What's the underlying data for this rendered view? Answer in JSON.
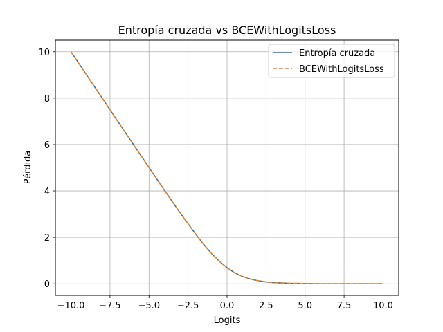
{
  "chart_data": {
    "type": "line",
    "title": "Entropía cruzada vs BCEWithLogitsLoss",
    "xlabel": "Logits",
    "ylabel": "Pérdida",
    "xlim": [
      -11,
      11
    ],
    "ylim": [
      -0.5,
      10.5
    ],
    "xticks": [
      -10.0,
      -7.5,
      -5.0,
      -2.5,
      0.0,
      2.5,
      5.0,
      7.5,
      10.0
    ],
    "xtick_labels": [
      "−10.0",
      "−7.5",
      "−5.0",
      "−2.5",
      "0.0",
      "2.5",
      "5.0",
      "7.5",
      "10.0"
    ],
    "yticks": [
      0,
      2,
      4,
      6,
      8,
      10
    ],
    "ytick_labels": [
      "0",
      "2",
      "4",
      "6",
      "8",
      "10"
    ],
    "grid": true,
    "legend_position": "top-right",
    "x": [
      -10,
      -9,
      -8,
      -7,
      -6,
      -5,
      -4,
      -3,
      -2,
      -1.5,
      -1,
      -0.5,
      0,
      0.5,
      1,
      1.5,
      2,
      2.5,
      3,
      4,
      5,
      6,
      7,
      8,
      9,
      10
    ],
    "series": [
      {
        "name": "Entropía cruzada",
        "color": "#1f77b4",
        "style": "solid",
        "values": [
          10.0,
          9.0,
          8.0,
          7.0,
          6.0,
          5.01,
          4.02,
          3.05,
          2.13,
          1.7,
          1.31,
          0.97,
          0.69,
          0.47,
          0.31,
          0.2,
          0.13,
          0.08,
          0.05,
          0.02,
          0.01,
          0.0,
          0.0,
          0.0,
          0.0,
          0.0
        ]
      },
      {
        "name": "BCEWithLogitsLoss",
        "color": "#ff7f0e",
        "style": "dashed",
        "values": [
          10.0,
          9.0,
          8.0,
          7.0,
          6.0,
          5.01,
          4.02,
          3.05,
          2.13,
          1.7,
          1.31,
          0.97,
          0.69,
          0.47,
          0.31,
          0.2,
          0.13,
          0.08,
          0.05,
          0.02,
          0.01,
          0.0,
          0.0,
          0.0,
          0.0,
          0.0
        ]
      }
    ]
  }
}
